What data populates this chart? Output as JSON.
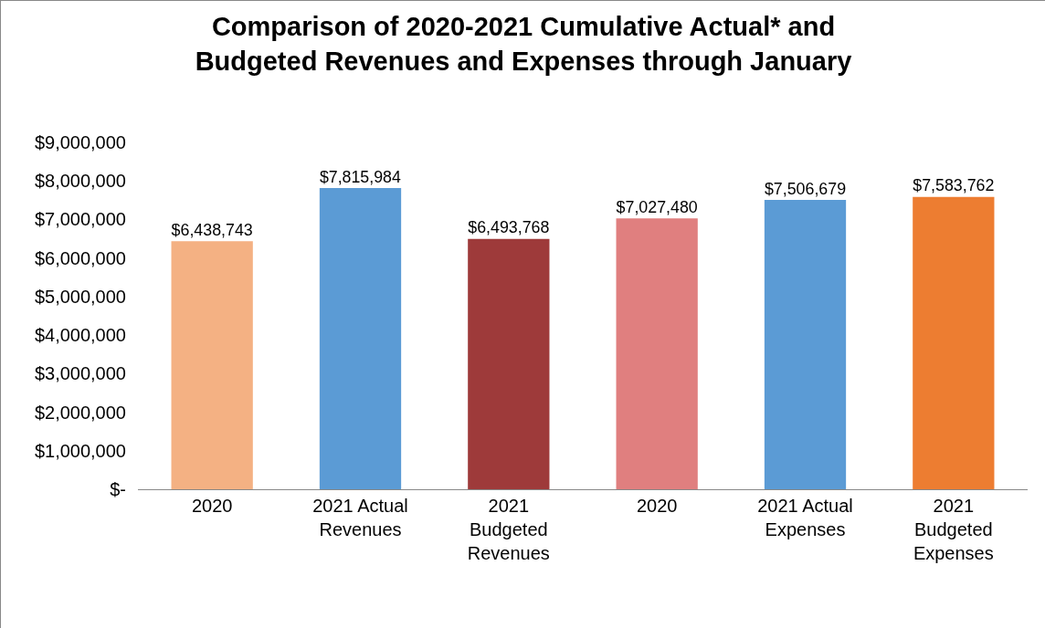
{
  "chart_data": {
    "type": "bar",
    "title": "Comparison of 2020-2021 Cumulative Actual* and\nBudgeted Revenues and Expenses through January",
    "categories": [
      "2020",
      "2021 Actual\nRevenues",
      "2021\nBudgeted\nRevenues",
      "2020",
      "2021 Actual\nExpenses",
      "2021\nBudgeted\nExpenses"
    ],
    "values": [
      6438743,
      7815984,
      6493768,
      7027480,
      7506679,
      7583762
    ],
    "colors": [
      "#f4b183",
      "#5b9bd5",
      "#9e3a3a",
      "#e07f7f",
      "#5b9bd5",
      "#ed7d31"
    ],
    "value_labels": [
      "$6,438,743",
      "$7,815,984",
      "$6,493,768",
      "$7,027,480",
      "$7,506,679",
      "$7,583,762"
    ],
    "ylim": [
      0,
      9000000
    ],
    "yticks": [
      {
        "value": 0,
        "label": "$-"
      },
      {
        "value": 1000000,
        "label": "$1,000,000"
      },
      {
        "value": 2000000,
        "label": "$2,000,000"
      },
      {
        "value": 3000000,
        "label": "$3,000,000"
      },
      {
        "value": 4000000,
        "label": "$4,000,000"
      },
      {
        "value": 5000000,
        "label": "$5,000,000"
      },
      {
        "value": 6000000,
        "label": "$6,000,000"
      },
      {
        "value": 7000000,
        "label": "$7,000,000"
      },
      {
        "value": 8000000,
        "label": "$8,000,000"
      },
      {
        "value": 9000000,
        "label": "$9,000,000"
      }
    ],
    "grid": false
  }
}
